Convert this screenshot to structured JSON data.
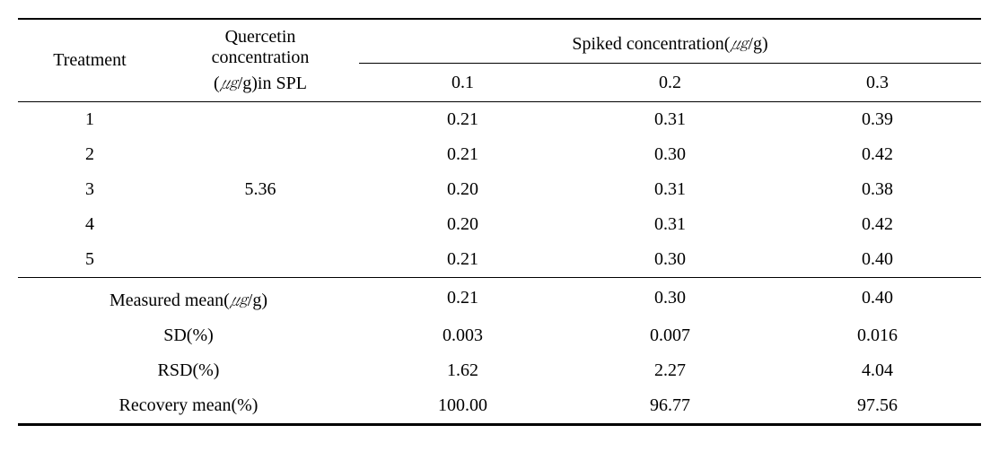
{
  "header": {
    "treatment": "Treatment",
    "quercetin_l1": "Quercetin",
    "quercetin_l2": "concentration",
    "quercetin_l3_pre": "(",
    "quercetin_l3_unit": "㎍",
    "quercetin_l3_post": "/g)in SPL",
    "spiked_pre": "Spiked concentration(",
    "spiked_unit": "㎍",
    "spiked_post": "/g)",
    "levels": [
      "0.1",
      "0.2",
      "0.3"
    ]
  },
  "quercetin_conc": "5.36",
  "rows": [
    {
      "t": "1",
      "v": [
        "0.21",
        "0.31",
        "0.39"
      ]
    },
    {
      "t": "2",
      "v": [
        "0.21",
        "0.30",
        "0.42"
      ]
    },
    {
      "t": "3",
      "v": [
        "0.20",
        "0.31",
        "0.38"
      ]
    },
    {
      "t": "4",
      "v": [
        "0.20",
        "0.31",
        "0.42"
      ]
    },
    {
      "t": "5",
      "v": [
        "0.21",
        "0.30",
        "0.40"
      ]
    }
  ],
  "summary": {
    "measured_mean_label_pre": "Measured mean(",
    "measured_mean_label_unit": "㎍",
    "measured_mean_label_post": "/g)",
    "sd_label": "SD(%)",
    "rsd_label": "RSD(%)",
    "recovery_label": "Recovery mean(%)",
    "measured_mean": [
      "0.21",
      "0.30",
      "0.40"
    ],
    "sd": [
      "0.003",
      "0.007",
      "0.016"
    ],
    "rsd": [
      "1.62",
      "2.27",
      "4.04"
    ],
    "recovery": [
      "100.00",
      "96.77",
      "97.56"
    ]
  }
}
